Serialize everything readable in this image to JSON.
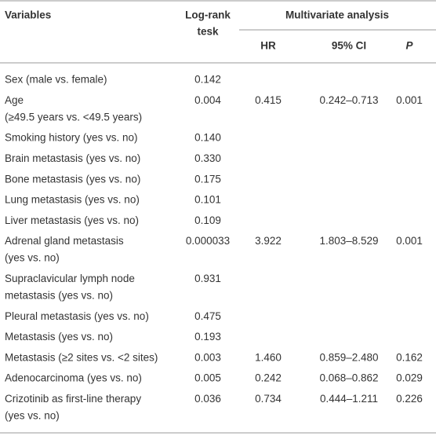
{
  "table": {
    "header": {
      "variables": "Variables",
      "logrank": [
        "Log-rank",
        "tesk"
      ],
      "multivariate": "Multivariate analysis",
      "hr": "HR",
      "ci": "95% CI",
      "p": "P"
    },
    "rows": [
      {
        "variable": [
          "Sex (male vs. female)"
        ],
        "logrank": "0.142"
      },
      {
        "variable": [
          "Age",
          "(≥49.5 years vs. <49.5 years)"
        ],
        "logrank": "0.004",
        "hr": "0.415",
        "ci": "0.242–0.713",
        "p": "0.001"
      },
      {
        "variable": [
          "Smoking history (yes vs. no)"
        ],
        "logrank": "0.140"
      },
      {
        "variable": [
          "Brain metastasis (yes vs. no)"
        ],
        "logrank": "0.330"
      },
      {
        "variable": [
          "Bone metastasis (yes vs. no)"
        ],
        "logrank": "0.175"
      },
      {
        "variable": [
          "Lung metastasis (yes vs. no)"
        ],
        "logrank": "0.101"
      },
      {
        "variable": [
          "Liver metastasis (yes vs. no)"
        ],
        "logrank": "0.109"
      },
      {
        "variable": [
          "Adrenal gland metastasis",
          "(yes vs. no)"
        ],
        "logrank": "0.000033",
        "hr": "3.922",
        "ci": "1.803–8.529",
        "p": "0.001"
      },
      {
        "variable": [
          "Supraclavicular lymph node",
          "metastasis (yes vs. no)"
        ],
        "logrank": "0.931"
      },
      {
        "variable": [
          "Pleural metastasis (yes vs. no)"
        ],
        "logrank": "0.475"
      },
      {
        "variable": [
          "Metastasis (yes vs. no)"
        ],
        "logrank": "0.193"
      },
      {
        "variable": [
          "Metastasis (≥2 sites vs. <2 sites)"
        ],
        "logrank": "0.003",
        "hr": "1.460",
        "ci": "0.859–2.480",
        "p": "0.162"
      },
      {
        "variable": [
          "Adenocarcinoma (yes vs. no)"
        ],
        "logrank": "0.005",
        "hr": "0.242",
        "ci": "0.068–0.862",
        "p": "0.029"
      },
      {
        "variable": [
          "Crizotinib as first-line therapy",
          "(yes vs. no)"
        ],
        "logrank": "0.036",
        "hr": "0.734",
        "ci": "0.444–1.211",
        "p": "0.226"
      }
    ]
  }
}
